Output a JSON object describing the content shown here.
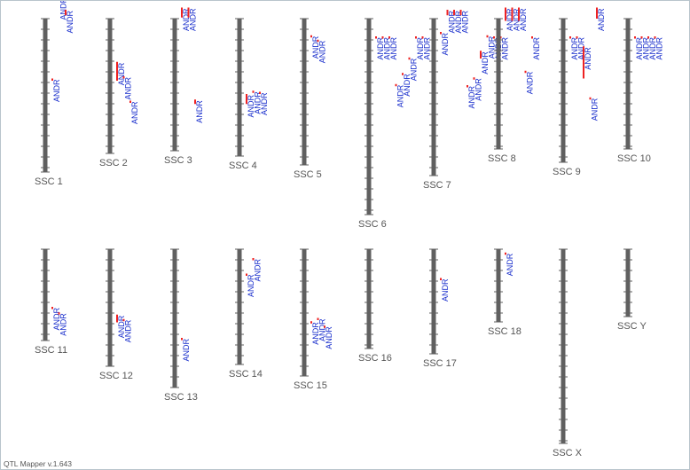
{
  "app": {
    "version_label": "QTL Mapper v.1.643"
  },
  "colors": {
    "chromosome": "#606060",
    "qtl_bar": "#ee2222",
    "qtl_text": "#1a2fcc",
    "label": "#555555"
  },
  "chromosomes": [
    {
      "label": "SSC 1",
      "qtls": [
        {
          "label": "ANDR",
          "cM": 27.0,
          "len": 0
        },
        {
          "label": "ANDR",
          "cM": -10,
          "len": 0
        },
        {
          "label": "ANDR",
          "cM": -4,
          "len": 2.5
        }
      ]
    },
    {
      "label": "SSC 2",
      "qtls": [
        {
          "label": "ANDR",
          "cM": 19.5,
          "len": 8.5
        },
        {
          "label": "ANDR",
          "cM": 26.0,
          "len": 0
        },
        {
          "label": "ANDR",
          "cM": 37.0,
          "len": 0
        }
      ]
    },
    {
      "label": "SSC 3",
      "qtls": [
        {
          "label": "ANDR",
          "cM": -5,
          "len": 4.5
        },
        {
          "label": "ANDR",
          "cM": -5,
          "len": 4.5
        },
        {
          "label": "ANDR",
          "cM": 36.5,
          "len": 2
        }
      ]
    },
    {
      "label": "SSC 4",
      "qtls": [
        {
          "label": "ANDR",
          "cM": 34.0,
          "len": 4.5
        },
        {
          "label": "ANDR",
          "cM": 32.5,
          "len": 0
        },
        {
          "label": "ANDR",
          "cM": 33.0,
          "len": 0
        }
      ]
    },
    {
      "label": "SSC 5",
      "qtls": [
        {
          "label": "ANDR",
          "cM": 7.5,
          "len": 0
        },
        {
          "label": "ANDR",
          "cM": 9.5,
          "len": 0
        }
      ]
    },
    {
      "label": "SSC 6",
      "qtls": [
        {
          "label": "ANDR",
          "cM": 8.0,
          "len": 0
        },
        {
          "label": "ANDR",
          "cM": 8.0,
          "len": 0
        },
        {
          "label": "ANDR",
          "cM": 8.0,
          "len": 0
        },
        {
          "label": "ANDR",
          "cM": 29.5,
          "len": 0
        },
        {
          "label": "ANDR",
          "cM": 24.5,
          "len": 0
        },
        {
          "label": "ANDR",
          "cM": 17.5,
          "len": 0
        },
        {
          "label": "ANDR",
          "cM": 8.0,
          "len": 0
        },
        {
          "label": "ANDR",
          "cM": 8.0,
          "len": 0
        }
      ]
    },
    {
      "label": "SSC 7",
      "qtls": [
        {
          "label": "ANDR",
          "cM": 6.0,
          "len": 0
        },
        {
          "label": "ANDR",
          "cM": -4,
          "len": 2.5
        },
        {
          "label": "ANDR",
          "cM": -4,
          "len": 2.5
        },
        {
          "label": "ANDR",
          "cM": -4,
          "len": 2.5
        },
        {
          "label": "ANDR",
          "cM": 30.0,
          "len": 0
        },
        {
          "label": "ANDR",
          "cM": 26.5,
          "len": 0
        },
        {
          "label": "ANDR",
          "cM": 14.5,
          "len": 3.5
        },
        {
          "label": "ANDR",
          "cM": 7.5,
          "len": 0
        },
        {
          "label": "ANDR",
          "cM": 8.0,
          "len": 0
        },
        {
          "label": "ANDR",
          "cM": 8.0,
          "len": 0
        }
      ]
    },
    {
      "label": "SSC 8",
      "qtls": [
        {
          "label": "ANDR",
          "cM": -5,
          "len": 6
        },
        {
          "label": "ANDR",
          "cM": -5,
          "len": 6
        },
        {
          "label": "ANDR",
          "cM": -5,
          "len": 6
        },
        {
          "label": "ANDR",
          "cM": 23.5,
          "len": 0
        },
        {
          "label": "ANDR",
          "cM": 8.0,
          "len": 0
        }
      ]
    },
    {
      "label": "SSC 9",
      "qtls": [
        {
          "label": "ANDR",
          "cM": 8.0,
          "len": 0
        },
        {
          "label": "ANDR",
          "cM": 8.0,
          "len": 0
        },
        {
          "label": "ANDR",
          "cM": 12.5,
          "len": 14.5
        },
        {
          "label": "ANDR",
          "cM": 35.5,
          "len": 0
        },
        {
          "label": "ANDR",
          "cM": -5,
          "len": 5
        }
      ]
    },
    {
      "label": "SSC 10",
      "qtls": [
        {
          "label": "ANDR",
          "cM": 8.0,
          "len": 0
        },
        {
          "label": "ANDR",
          "cM": 8.0,
          "len": 0
        },
        {
          "label": "ANDR",
          "cM": 8.0,
          "len": 0
        },
        {
          "label": "ANDR",
          "cM": 8.0,
          "len": 0
        }
      ]
    },
    {
      "label": "SSC 11",
      "qtls": [
        {
          "label": "ANDR",
          "cM": 26.0,
          "len": 0
        },
        {
          "label": "ANDR",
          "cM": 28.5,
          "len": 0
        }
      ]
    },
    {
      "label": "SSC 12",
      "qtls": [
        {
          "label": "ANDR",
          "cM": 29.5,
          "len": 3.5
        },
        {
          "label": "ANDR",
          "cM": 31.5,
          "len": 0
        }
      ]
    },
    {
      "label": "SSC 13",
      "qtls": [
        {
          "label": "ANDR",
          "cM": 40.0,
          "len": 0
        }
      ]
    },
    {
      "label": "SSC 14",
      "qtls": [
        {
          "label": "ANDR",
          "cM": 11.0,
          "len": 0
        },
        {
          "label": "ANDR",
          "cM": 4.0,
          "len": 0
        }
      ]
    },
    {
      "label": "SSC 15",
      "qtls": [
        {
          "label": "ANDR",
          "cM": 32.5,
          "len": 0
        },
        {
          "label": "ANDR",
          "cM": 31.0,
          "len": 0
        },
        {
          "label": "ANDR",
          "cM": 34.5,
          "len": 0
        }
      ]
    },
    {
      "label": "SSC 16",
      "qtls": []
    },
    {
      "label": "SSC 17",
      "qtls": [
        {
          "label": "ANDR",
          "cM": 13.0,
          "len": 0
        }
      ]
    },
    {
      "label": "SSC 18",
      "qtls": [
        {
          "label": "ANDR",
          "cM": 1.5,
          "len": 0
        }
      ]
    },
    {
      "label": "SSC X",
      "qtls": []
    },
    {
      "label": "SSC Y",
      "qtls": []
    }
  ]
}
